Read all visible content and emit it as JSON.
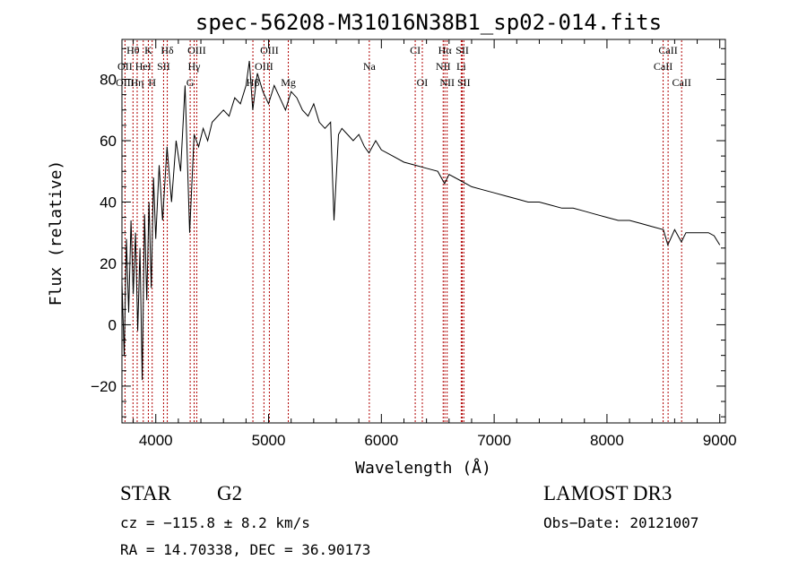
{
  "chart_data": {
    "type": "line",
    "title": "spec-56208-M31016N38B1_sp02-014.fits",
    "xlabel": "Wavelength (Å)",
    "ylabel": "Flux (relative)",
    "xlim": [
      3700,
      9050
    ],
    "ylim": [
      -32,
      93
    ],
    "x_ticks": [
      4000,
      5000,
      6000,
      7000,
      8000,
      9000
    ],
    "x_tick_labels": [
      "4000",
      "5000",
      "6000",
      "7000",
      "8000",
      "9000"
    ],
    "y_ticks": [
      -20,
      0,
      20,
      40,
      60,
      80
    ],
    "y_tick_labels": [
      "−20",
      "0",
      "20",
      "40",
      "60",
      "80"
    ],
    "series": [
      {
        "name": "flux",
        "x": [
          3700,
          3720,
          3740,
          3760,
          3780,
          3800,
          3820,
          3840,
          3860,
          3880,
          3900,
          3920,
          3940,
          3960,
          3980,
          4000,
          4030,
          4060,
          4100,
          4140,
          4180,
          4220,
          4260,
          4300,
          4340,
          4380,
          4420,
          4460,
          4500,
          4550,
          4600,
          4650,
          4700,
          4750,
          4800,
          4830,
          4860,
          4900,
          4950,
          5000,
          5050,
          5100,
          5150,
          5200,
          5250,
          5300,
          5350,
          5400,
          5450,
          5500,
          5550,
          5580,
          5620,
          5650,
          5700,
          5750,
          5800,
          5850,
          5890,
          5950,
          6000,
          6100,
          6200,
          6300,
          6400,
          6500,
          6560,
          6600,
          6700,
          6800,
          6900,
          7000,
          7100,
          7200,
          7300,
          7400,
          7500,
          7600,
          7700,
          7800,
          7900,
          8000,
          8100,
          8200,
          8300,
          8400,
          8500,
          8540,
          8600,
          8660,
          8700,
          8800,
          8900,
          8950,
          9000
        ],
        "y": [
          14,
          -10,
          28,
          4,
          34,
          10,
          30,
          -2,
          25,
          -18,
          36,
          8,
          40,
          12,
          48,
          28,
          52,
          34,
          58,
          40,
          60,
          50,
          78,
          30,
          62,
          58,
          64,
          60,
          66,
          68,
          70,
          68,
          74,
          72,
          78,
          86,
          70,
          82,
          76,
          72,
          78,
          74,
          70,
          76,
          74,
          70,
          68,
          72,
          66,
          64,
          66,
          34,
          62,
          64,
          62,
          60,
          62,
          58,
          56,
          60,
          57,
          55,
          53,
          52,
          51,
          50,
          46,
          49,
          47,
          45,
          44,
          43,
          42,
          41,
          40,
          40,
          39,
          38,
          38,
          37,
          36,
          35,
          34,
          34,
          33,
          32,
          31,
          26,
          31,
          27,
          30,
          30,
          30,
          29,
          26
        ]
      }
    ],
    "spectral_lines": [
      {
        "label": "Hθ",
        "wavelength": 3798,
        "row": 0
      },
      {
        "label": "K",
        "wavelength": 3934,
        "row": 0
      },
      {
        "label": "Hδ",
        "wavelength": 4102,
        "row": 0
      },
      {
        "label": "OIII",
        "wavelength": 4363,
        "row": 0
      },
      {
        "label": "OIII",
        "wavelength": 5007,
        "row": 0
      },
      {
        "label": "CI",
        "wavelength": 6300,
        "row": 0
      },
      {
        "label": "Hα",
        "wavelength": 6563,
        "row": 0
      },
      {
        "label": "SII",
        "wavelength": 6717,
        "row": 0
      },
      {
        "label": "CaII",
        "wavelength": 8542,
        "row": 0
      },
      {
        "label": "OII",
        "wavelength": 3727,
        "row": 1
      },
      {
        "label": "HeI",
        "wavelength": 3889,
        "row": 1
      },
      {
        "label": "SII",
        "wavelength": 4069,
        "row": 1
      },
      {
        "label": "Hγ",
        "wavelength": 4340,
        "row": 1
      },
      {
        "label": "OIII",
        "wavelength": 4959,
        "row": 1
      },
      {
        "label": "Na",
        "wavelength": 5893,
        "row": 1
      },
      {
        "label": "NII",
        "wavelength": 6548,
        "row": 1
      },
      {
        "label": "Li",
        "wavelength": 6708,
        "row": 1
      },
      {
        "label": "CaII",
        "wavelength": 8498,
        "row": 1
      },
      {
        "label": "OIII",
        "wavelength": 3727,
        "row": 2
      },
      {
        "label": "Hη",
        "wavelength": 3835,
        "row": 2
      },
      {
        "label": "H",
        "wavelength": 3968,
        "row": 2
      },
      {
        "label": "G",
        "wavelength": 4305,
        "row": 2
      },
      {
        "label": "Hβ",
        "wavelength": 4861,
        "row": 2
      },
      {
        "label": "Mg",
        "wavelength": 5175,
        "row": 2
      },
      {
        "label": "OI",
        "wavelength": 6363,
        "row": 2
      },
      {
        "label": "NII",
        "wavelength": 6583,
        "row": 2
      },
      {
        "label": "SII",
        "wavelength": 6731,
        "row": 2
      },
      {
        "label": "CaII",
        "wavelength": 8662,
        "row": 2
      }
    ]
  },
  "info": {
    "object_class": "STAR",
    "subclass": "G2",
    "survey": "LAMOST DR3",
    "cz": "cz = −115.8 ± 8.2 km/s",
    "obs_date": "Obs−Date: 20121007",
    "coords": "RA =  14.70338, DEC =  36.90173"
  },
  "colors": {
    "line_marker": "#b00000",
    "spectrum": "#000000"
  }
}
